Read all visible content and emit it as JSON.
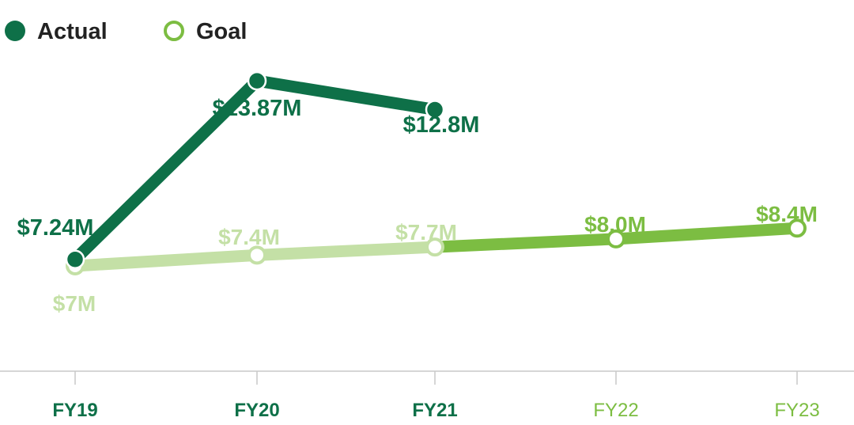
{
  "chart_data": {
    "type": "line",
    "categories": [
      "FY19",
      "FY20",
      "FY21",
      "FY22",
      "FY23"
    ],
    "series": [
      {
        "name": "Actual",
        "values": [
          7.24,
          13.87,
          12.8,
          null,
          null
        ],
        "labels": [
          "$7.24M",
          "$13.87M",
          "$12.8M",
          "",
          ""
        ],
        "color": "#0e7048"
      },
      {
        "name": "Goal",
        "values": [
          7.0,
          7.4,
          7.7,
          8.0,
          8.4
        ],
        "labels": [
          "$7M",
          "$7.4M",
          "$7.7M",
          "$8.0M",
          "$8.4M"
        ],
        "color": "#7cbd42",
        "past_color": "#c4e0a6"
      }
    ],
    "category_colors": [
      "#0e7048",
      "#0e7048",
      "#0e7048",
      "#7cbd42",
      "#7cbd42"
    ],
    "legend": {
      "position": "top-left",
      "items": [
        {
          "label": "Actual",
          "marker": "filled-circle",
          "color": "#0e7048"
        },
        {
          "label": "Goal",
          "marker": "hollow-circle",
          "color": "#7cbd42"
        }
      ]
    },
    "ylim": [
      4,
      16
    ],
    "grid": false,
    "title": "",
    "xlabel": "",
    "ylabel": ""
  }
}
